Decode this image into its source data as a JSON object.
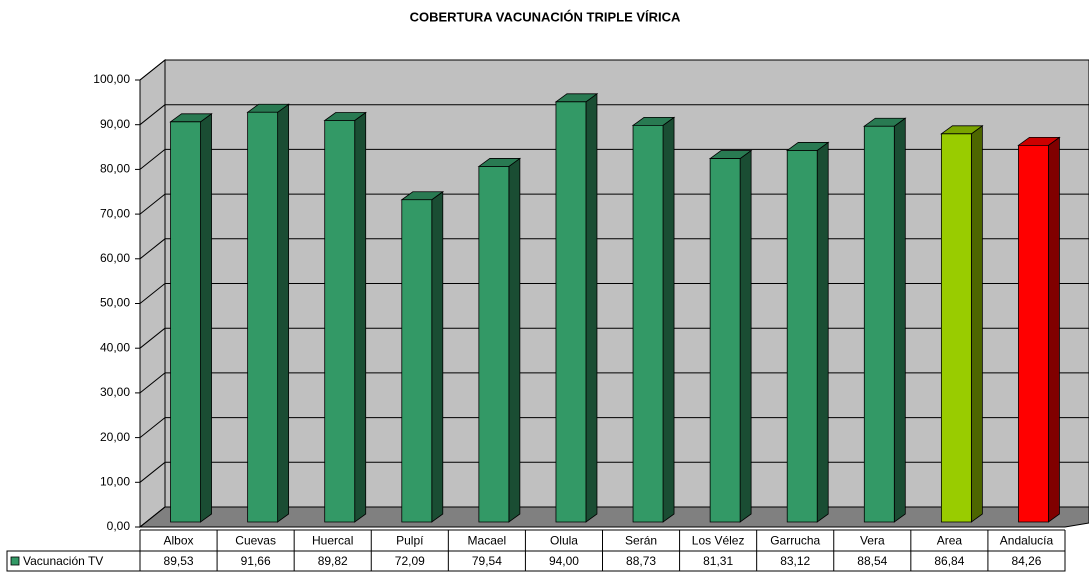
{
  "chart_data": {
    "type": "bar3d",
    "title": "COBERTURA VACUNACIÓN TRIPLE VÍRICA",
    "categories": [
      "Albox",
      "Cuevas",
      "Huercal",
      "Pulpí",
      "Macael",
      "Olula",
      "Serán",
      "Los Vélez",
      "Garrucha",
      "Vera",
      "Area",
      "Andalucía"
    ],
    "series": [
      {
        "name": "Vacunación TV",
        "color": "#339966",
        "colors": [
          "#339966",
          "#339966",
          "#339966",
          "#339966",
          "#339966",
          "#339966",
          "#339966",
          "#339966",
          "#339966",
          "#339966",
          "#99cc00",
          "#ff0000"
        ],
        "values": [
          89.53,
          91.66,
          89.82,
          72.09,
          79.54,
          94.0,
          88.73,
          81.31,
          83.12,
          88.54,
          86.84,
          84.26
        ],
        "value_labels": [
          "89,53",
          "91,66",
          "89,82",
          "72,09",
          "79,54",
          "94,00",
          "88,73",
          "81,31",
          "83,12",
          "88,54",
          "86,84",
          "84,26"
        ]
      }
    ],
    "ylim": [
      0,
      100
    ],
    "yticks": [
      {
        "value": 0,
        "label": "0,00"
      },
      {
        "value": 10,
        "label": "10,00"
      },
      {
        "value": 20,
        "label": "20,00"
      },
      {
        "value": 30,
        "label": "30,00"
      },
      {
        "value": 40,
        "label": "40,00"
      },
      {
        "value": 50,
        "label": "50,00"
      },
      {
        "value": 60,
        "label": "60,00"
      },
      {
        "value": 70,
        "label": "70,00"
      },
      {
        "value": 80,
        "label": "80,00"
      },
      {
        "value": 90,
        "label": "90,00"
      },
      {
        "value": 100,
        "label": "100,00"
      }
    ],
    "grid": true
  }
}
